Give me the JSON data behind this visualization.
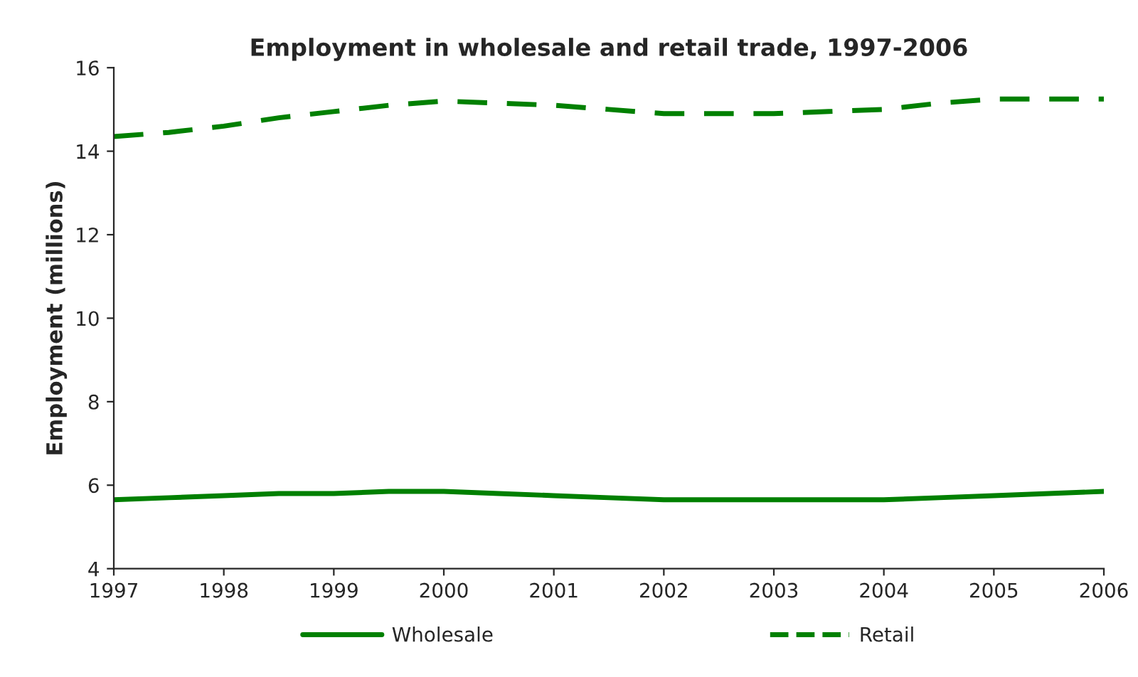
{
  "chart_data": {
    "type": "line",
    "title": "Employment in wholesale and retail trade, 1997-2006",
    "ylabel": "Employment (millions)",
    "xlim": [
      1997,
      2006
    ],
    "xticks": [
      1997,
      1998,
      1999,
      2000,
      2001,
      2002,
      2003,
      2004,
      2005,
      2006
    ],
    "ylim": [
      4,
      16
    ],
    "yticks": [
      4,
      6,
      8,
      10,
      12,
      14,
      16
    ],
    "grid": false,
    "legend": "bottom",
    "series": [
      {
        "name": "Wholesale",
        "color": "#008000",
        "line_style": "solid",
        "x": [
          1997,
          1997.5,
          1998,
          1998.5,
          1999,
          1999.5,
          2000,
          2000.5,
          2001,
          2001.5,
          2002,
          2002.5,
          2003,
          2003.5,
          2004,
          2004.5,
          2005,
          2005.5,
          2006
        ],
        "values": [
          5.65,
          5.7,
          5.75,
          5.8,
          5.8,
          5.85,
          5.85,
          5.8,
          5.75,
          5.7,
          5.65,
          5.65,
          5.65,
          5.65,
          5.65,
          5.7,
          5.75,
          5.8,
          5.85
        ]
      },
      {
        "name": "Retail",
        "color": "#008000",
        "line_style": "dashed",
        "x": [
          1997,
          1997.5,
          1998,
          1998.5,
          1999,
          1999.5,
          2000,
          2000.5,
          2001,
          2001.5,
          2002,
          2002.5,
          2003,
          2003.5,
          2004,
          2004.5,
          2005,
          2005.5,
          2006
        ],
        "values": [
          14.35,
          14.45,
          14.6,
          14.8,
          14.95,
          15.1,
          15.2,
          15.15,
          15.1,
          15.0,
          14.9,
          14.9,
          14.9,
          14.95,
          15.0,
          15.15,
          15.25,
          15.25,
          15.25
        ]
      }
    ]
  }
}
